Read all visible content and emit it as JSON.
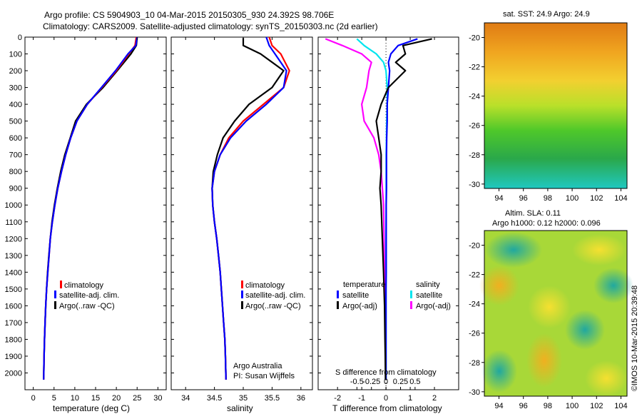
{
  "header": {
    "line1": "Argo profile: CS 5904903_10 04-Mar-2015 20150305_930 24.392S 98.706E",
    "line2": "Climatology: CARS2009. Satellite-adjusted climatology: synTS_20150303.nc (2d earlier)"
  },
  "colors": {
    "climatology": "#ff0000",
    "satellite": "#0000ff",
    "argo": "#000000",
    "satellite_s": "#00e5ee",
    "argo_s": "#ff00ff"
  },
  "depth_ticks": [
    0,
    100,
    200,
    300,
    400,
    500,
    600,
    700,
    800,
    900,
    1000,
    1100,
    1200,
    1300,
    1400,
    1500,
    1600,
    1700,
    1800,
    1900,
    2000
  ],
  "panels": {
    "temperature": {
      "xlabel": "temperature (deg C)",
      "xticks": [
        "0",
        "5",
        "10",
        "15",
        "20",
        "25",
        "30"
      ],
      "legend": [
        "climatology",
        "satellite-adj. clim.",
        "Argo(..raw -QC)"
      ],
      "xlim": [
        -2,
        32
      ]
    },
    "salinity": {
      "xlabel": "salinity",
      "xticks": [
        "34",
        "34.5",
        "35",
        "35.5",
        "36"
      ],
      "legend": [
        "climatology",
        "satellite-adj. clim.",
        "Argo(..raw -QC)"
      ],
      "annotation": [
        "Argo Australia",
        "PI: Susan Wijffels"
      ],
      "xlim": [
        33.75,
        36.2
      ]
    },
    "difference": {
      "xlabel": "T difference from climatology",
      "top_axis_label": "S difference from climatology",
      "xticks_T": [
        "-2",
        "-1",
        "0",
        "1",
        "2"
      ],
      "xticks_S": [
        "-0.5",
        "-0.25",
        "0",
        "0.25",
        "0.5"
      ],
      "legend_titles": [
        "temperature",
        "salinity"
      ],
      "legend_T": [
        "satellite",
        "Argo(-adj)"
      ],
      "legend_S": [
        "satellite",
        "Argo(-adj)"
      ],
      "xlim": [
        -2.8,
        3
      ]
    }
  },
  "maps": {
    "sst": {
      "title": "sat. SST: 24.9 Argo: 24.9",
      "xticks": [
        "94",
        "96",
        "98",
        "100",
        "102",
        "104"
      ],
      "yticks": [
        "-20",
        "-22",
        "-24",
        "-26",
        "-28",
        "-30"
      ]
    },
    "sla": {
      "title1": "Altim. SLA: 0.11",
      "title2": "Argo h1000: 0.12 h2000: 0.096",
      "xticks": [
        "94",
        "96",
        "98",
        "100",
        "102",
        "104"
      ],
      "yticks": [
        "-20",
        "-22",
        "-24",
        "-26",
        "-28",
        "-30"
      ]
    }
  },
  "credit": "©IMOS 10-Mar-2015 20:39:48",
  "chart_data": [
    {
      "type": "line",
      "y_is_depth": true,
      "ylim": [
        2100,
        0
      ],
      "xlim": [
        -2,
        32
      ],
      "xlabel": "temperature (deg C)",
      "series": [
        {
          "name": "climatology",
          "x": [
            24.8,
            24.5,
            23.0,
            20.0,
            16.5,
            13.0,
            10.5,
            9.0,
            7.8,
            6.8,
            5.9,
            5.2,
            4.6,
            4.1,
            3.8,
            3.5,
            3.2,
            3.0,
            2.85,
            2.7,
            2.6,
            2.5
          ],
          "y": [
            0,
            50,
            100,
            200,
            300,
            400,
            500,
            600,
            700,
            800,
            900,
            1000,
            1100,
            1200,
            1300,
            1400,
            1500,
            1600,
            1700,
            1800,
            1900,
            2040
          ]
        },
        {
          "name": "satellite-adj. clim.",
          "x": [
            25.0,
            24.7,
            22.8,
            19.8,
            16.4,
            13.0,
            10.5,
            9.0,
            7.8,
            6.8,
            5.9,
            5.2,
            4.6,
            4.1,
            3.8,
            3.5,
            3.2,
            3.0,
            2.85,
            2.7,
            2.6,
            2.5
          ],
          "y": [
            0,
            50,
            100,
            200,
            300,
            400,
            500,
            600,
            700,
            800,
            900,
            1000,
            1100,
            1200,
            1300,
            1400,
            1500,
            1600,
            1700,
            1800,
            1900,
            2040
          ]
        },
        {
          "name": "Argo(..raw -QC)",
          "x": [
            25.0,
            24.8,
            23.5,
            20.2,
            16.8,
            12.8,
            10.2,
            8.9,
            7.6,
            6.6,
            5.8,
            5.1,
            4.5,
            4.1,
            3.75,
            3.45,
            3.2,
            3.0,
            2.85,
            2.7,
            2.6,
            2.5
          ],
          "y": [
            5,
            50,
            100,
            200,
            300,
            400,
            500,
            600,
            700,
            800,
            900,
            1000,
            1100,
            1200,
            1300,
            1400,
            1500,
            1600,
            1700,
            1800,
            1900,
            2040
          ]
        }
      ]
    },
    {
      "type": "line",
      "y_is_depth": true,
      "ylim": [
        2100,
        0
      ],
      "xlim": [
        33.75,
        36.2
      ],
      "xlabel": "salinity",
      "series": [
        {
          "name": "climatology",
          "x": [
            35.45,
            35.5,
            35.65,
            35.8,
            35.7,
            35.35,
            35.0,
            34.75,
            34.6,
            34.5,
            34.46,
            34.47,
            34.5,
            34.54,
            34.57,
            34.6,
            34.62,
            34.64,
            34.66,
            34.68,
            34.69,
            34.7
          ],
          "y": [
            0,
            50,
            100,
            200,
            300,
            400,
            500,
            600,
            700,
            800,
            900,
            1000,
            1100,
            1200,
            1300,
            1400,
            1500,
            1600,
            1700,
            1800,
            1900,
            2040
          ]
        },
        {
          "name": "satellite-adj. clim.",
          "x": [
            35.4,
            35.45,
            35.55,
            35.75,
            35.7,
            35.4,
            35.05,
            34.78,
            34.6,
            34.5,
            34.46,
            34.47,
            34.5,
            34.54,
            34.57,
            34.6,
            34.62,
            34.64,
            34.66,
            34.68,
            34.69,
            34.7
          ],
          "y": [
            0,
            50,
            100,
            200,
            300,
            400,
            500,
            600,
            700,
            800,
            900,
            1000,
            1100,
            1200,
            1300,
            1400,
            1500,
            1600,
            1700,
            1800,
            1900,
            2040
          ]
        },
        {
          "name": "Argo(..raw -QC)",
          "x": [
            35.0,
            35.0,
            35.3,
            35.7,
            35.5,
            35.1,
            34.85,
            34.65,
            34.55,
            34.48,
            34.46,
            34.47,
            34.5,
            34.54,
            34.57,
            34.6,
            34.62,
            34.64,
            34.66,
            34.68,
            34.69,
            34.7
          ],
          "y": [
            5,
            50,
            100,
            200,
            300,
            400,
            500,
            600,
            700,
            800,
            900,
            1000,
            1100,
            1200,
            1300,
            1400,
            1500,
            1600,
            1700,
            1800,
            1900,
            2040
          ]
        }
      ]
    },
    {
      "type": "line",
      "y_is_depth": true,
      "ylim": [
        2100,
        0
      ],
      "xlim": [
        -2.8,
        3
      ],
      "xlabel": "T difference from climatology",
      "series": [
        {
          "name": "temperature satellite",
          "x": [
            1.3,
            0.5,
            0.2,
            0.1,
            0.15,
            0.1,
            0.05,
            0.05,
            0.03,
            0.02,
            0.02,
            0.02,
            0.01,
            0.01,
            0.01,
            0.0,
            0.0,
            0.0,
            0.0,
            0.0,
            0.0
          ],
          "y": [
            10,
            50,
            100,
            150,
            200,
            300,
            400,
            500,
            600,
            700,
            800,
            900,
            1000,
            1200,
            1400,
            1500,
            1600,
            1700,
            1800,
            1900,
            2040
          ]
        },
        {
          "name": "temperature Argo(-adj)",
          "x": [
            1.9,
            0.7,
            0.8,
            0.4,
            0.8,
            0.1,
            -0.2,
            -0.4,
            -0.3,
            -0.2,
            -0.2,
            -0.25,
            -0.2,
            -0.15,
            -0.1,
            -0.08,
            -0.06,
            -0.05,
            -0.04,
            -0.03,
            -0.02
          ],
          "y": [
            10,
            50,
            100,
            150,
            200,
            300,
            400,
            500,
            600,
            700,
            800,
            900,
            1000,
            1200,
            1400,
            1500,
            1600,
            1700,
            1800,
            1900,
            2040
          ]
        },
        {
          "name": "salinity satellite",
          "x": [
            -1.2,
            -0.9,
            -0.4,
            -0.1,
            0.0,
            0.05,
            0.05,
            0.03,
            0.02,
            0.01,
            0.01,
            0.01,
            0.01,
            0.0,
            0.0,
            0.0,
            0.0,
            0.0,
            0.0,
            0.0,
            0.0
          ],
          "y": [
            10,
            50,
            100,
            150,
            200,
            300,
            400,
            500,
            600,
            700,
            800,
            900,
            1000,
            1200,
            1400,
            1500,
            1600,
            1700,
            1800,
            1900,
            2040
          ]
        },
        {
          "name": "salinity Argo(-adj)",
          "x": [
            -2.5,
            -1.8,
            -1.0,
            -0.6,
            -0.7,
            -0.8,
            -1.0,
            -0.9,
            -0.5,
            -0.3,
            -0.2,
            -0.15,
            -0.1,
            -0.08,
            -0.06,
            -0.05,
            -0.04,
            -0.03,
            -0.02,
            -0.01,
            -0.01
          ],
          "y": [
            10,
            50,
            100,
            150,
            200,
            300,
            400,
            500,
            600,
            700,
            800,
            900,
            1000,
            1200,
            1400,
            1500,
            1600,
            1700,
            1800,
            1900,
            2040
          ]
        }
      ]
    }
  ]
}
